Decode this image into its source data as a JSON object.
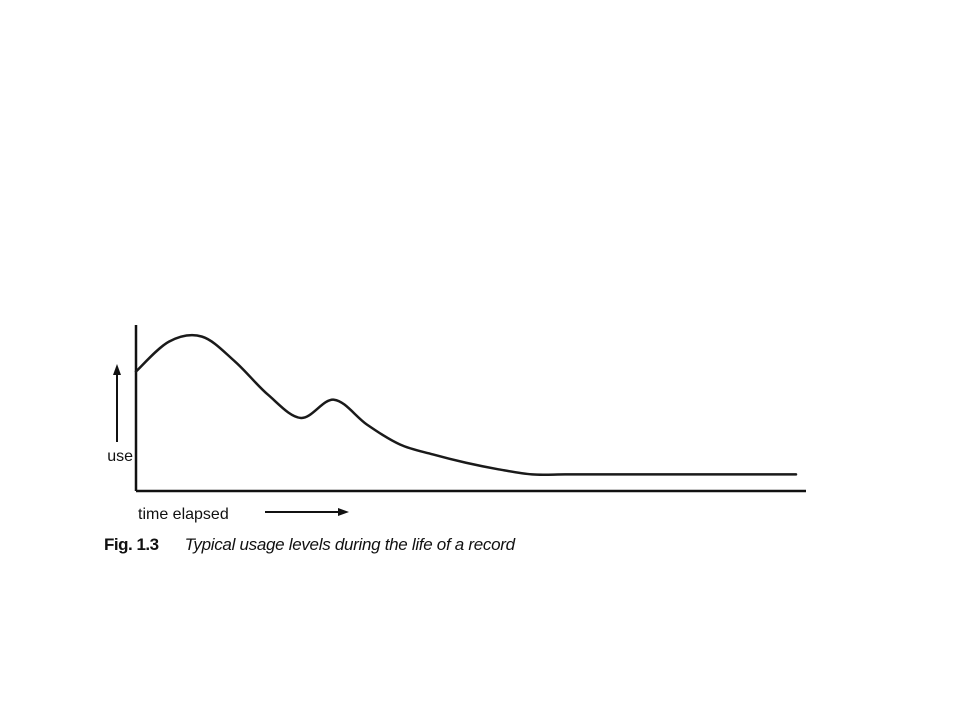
{
  "chart_data": {
    "type": "line",
    "title": "",
    "xlabel": "time elapsed",
    "ylabel": "use",
    "x": [
      0,
      5,
      10,
      15,
      20,
      25,
      30,
      35,
      40,
      45,
      50,
      55,
      60,
      65,
      70,
      75,
      80,
      85,
      90,
      95,
      100
    ],
    "series": [
      {
        "values": [
          72,
          90,
          93,
          78,
          58,
          44,
          55,
          40,
          28,
          22,
          17,
          13,
          10,
          10,
          10,
          10,
          10,
          10,
          10,
          10,
          10
        ]
      }
    ],
    "xlim": [
      0,
      100
    ],
    "ylim": [
      0,
      100
    ],
    "grid": false,
    "legend": "none",
    "line_color": "#1a1a1a"
  },
  "caption": {
    "number": "Fig. 1.3",
    "text": "Typical usage levels during the life of a record"
  }
}
